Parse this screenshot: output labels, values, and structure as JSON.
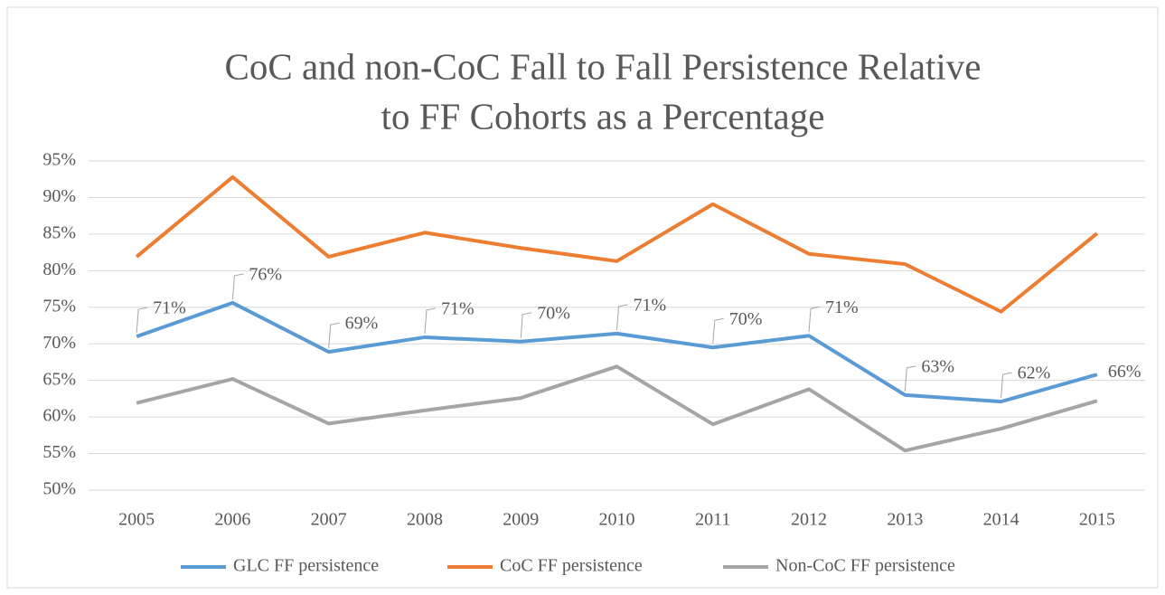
{
  "chart_data": {
    "type": "line",
    "title": [
      "CoC and non-CoC Fall to Fall Persistence Relative",
      "to FF Cohorts as a Percentage"
    ],
    "categories": [
      "2005",
      "2006",
      "2007",
      "2008",
      "2009",
      "2010",
      "2011",
      "2012",
      "2013",
      "2014",
      "2015"
    ],
    "series": [
      {
        "name": "GLC FF persistence",
        "color": "#5b9bd5",
        "values": [
          71.0,
          75.6,
          68.9,
          70.9,
          70.3,
          71.4,
          69.5,
          71.1,
          63.0,
          62.1,
          65.8
        ],
        "value_labels": [
          "71%",
          "76%",
          "69%",
          "71%",
          "70%",
          "71%",
          "70%",
          "71%",
          "63%",
          "62%",
          "66%"
        ]
      },
      {
        "name": "CoC FF persistence",
        "color": "#ed7d31",
        "values": [
          81.9,
          92.8,
          81.9,
          85.2,
          83.1,
          81.3,
          89.1,
          82.3,
          80.9,
          74.4,
          85.1
        ]
      },
      {
        "name": "Non-CoC FF persistence",
        "color": "#a5a5a5",
        "values": [
          61.9,
          65.2,
          59.1,
          60.9,
          62.6,
          66.9,
          59.0,
          63.8,
          55.4,
          58.4,
          62.2
        ]
      }
    ],
    "ylim": [
      50,
      95
    ],
    "yticks": [
      {
        "value": 50,
        "label": "50%"
      },
      {
        "value": 55,
        "label": "55%"
      },
      {
        "value": 60,
        "label": "60%"
      },
      {
        "value": 65,
        "label": "65%"
      },
      {
        "value": 70,
        "label": "70%"
      },
      {
        "value": 75,
        "label": "75%"
      },
      {
        "value": 80,
        "label": "80%"
      },
      {
        "value": 85,
        "label": "85%"
      },
      {
        "value": 90,
        "label": "90%"
      },
      {
        "value": 95,
        "label": "95%"
      }
    ],
    "grid": true,
    "legend": "bottom"
  }
}
